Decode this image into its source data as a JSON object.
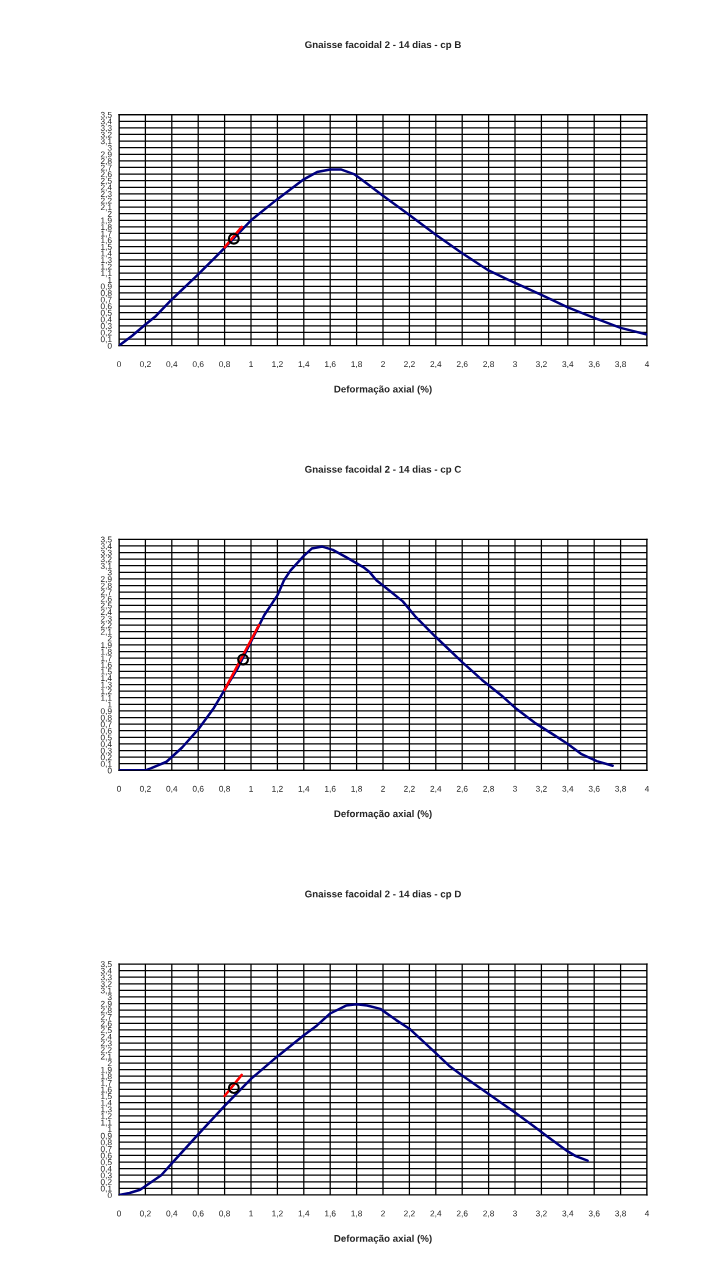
{
  "chart_data": [
    {
      "type": "line",
      "title": "Gnaisse facoidal 2 - 14 dias - cp B",
      "xlabel": "Deformação axial (%)",
      "xlim": [
        0,
        4
      ],
      "xticks": [
        0,
        {
          "value": 0.2,
          "label": "0,2"
        },
        {
          "value": 0.4,
          "label": "0,4"
        },
        {
          "value": 0.6,
          "label": "0,6"
        },
        {
          "value": 0.8,
          "label": "0,8"
        },
        1,
        {
          "value": 1.2,
          "label": "1,2"
        },
        {
          "value": 1.4,
          "label": "1,4"
        },
        {
          "value": 1.6,
          "label": "1,6"
        },
        {
          "value": 1.8,
          "label": "1,8"
        },
        2,
        {
          "value": 2.2,
          "label": "2,2"
        },
        {
          "value": 2.4,
          "label": "2,4"
        },
        {
          "value": 2.6,
          "label": "2,6"
        },
        {
          "value": 2.8,
          "label": "2,8"
        },
        3,
        {
          "value": 3.2,
          "label": "3,2"
        },
        {
          "value": 3.4,
          "label": "3,4"
        },
        {
          "value": 3.6,
          "label": "3,6"
        },
        {
          "value": 3.8,
          "label": "3,8"
        },
        4
      ],
      "ylim": [
        0,
        3.5
      ],
      "yticks": [
        0,
        {
          "value": 0.1,
          "label": "0,1"
        },
        {
          "value": 0.2,
          "label": "0,2"
        },
        {
          "value": 0.3,
          "label": "0,3"
        },
        {
          "value": 0.4,
          "label": "0,4"
        },
        {
          "value": 0.5,
          "label": "0,5"
        },
        {
          "value": 0.6,
          "label": "0,6"
        },
        {
          "value": 0.7,
          "label": "0,7"
        },
        {
          "value": 0.8,
          "label": "0,8"
        },
        {
          "value": 0.9,
          "label": "0,9"
        },
        1,
        {
          "value": 1.1,
          "label": "1,1"
        },
        {
          "value": 1.2,
          "label": "1,2"
        },
        {
          "value": 1.3,
          "label": "1,3"
        },
        {
          "value": 1.4,
          "label": "1,4"
        },
        {
          "value": 1.5,
          "label": "1,5"
        },
        {
          "value": 1.6,
          "label": "1,6"
        },
        {
          "value": 1.7,
          "label": "1,7"
        },
        {
          "value": 1.8,
          "label": "1,8"
        },
        {
          "value": 1.9,
          "label": "1,9"
        },
        2,
        {
          "value": 2.1,
          "label": "2,1"
        },
        {
          "value": 2.2,
          "label": "2,2"
        },
        {
          "value": 2.3,
          "label": "2,3"
        },
        {
          "value": 2.4,
          "label": "2,4"
        },
        {
          "value": 2.5,
          "label": "2,5"
        },
        {
          "value": 2.6,
          "label": "2,6"
        },
        {
          "value": 2.7,
          "label": "2,7"
        },
        {
          "value": 2.8,
          "label": "2,8"
        },
        {
          "value": 2.9,
          "label": "2,9"
        },
        3,
        {
          "value": 3.1,
          "label": "3,1"
        },
        {
          "value": 3.2,
          "label": "3,2"
        },
        {
          "value": 3.3,
          "label": "3,3"
        },
        {
          "value": 3.4,
          "label": "3,4"
        },
        {
          "value": 3.5,
          "label": "3,5"
        }
      ],
      "grid": true,
      "legend": false,
      "series": [
        {
          "color": "#000080",
          "x": [
            0,
            0.1,
            0.2,
            0.28,
            0.4,
            0.6,
            0.8,
            1.0,
            1.2,
            1.4,
            1.5,
            1.6,
            1.68,
            1.78,
            1.85,
            2.0,
            2.2,
            2.4,
            2.6,
            2.8,
            3.0,
            3.2,
            3.4,
            3.6,
            3.8,
            4.0
          ],
          "values": [
            0,
            0.15,
            0.32,
            0.45,
            0.7,
            1.08,
            1.48,
            1.9,
            2.22,
            2.52,
            2.63,
            2.67,
            2.67,
            2.6,
            2.5,
            2.27,
            1.98,
            1.68,
            1.4,
            1.14,
            0.95,
            0.77,
            0.58,
            0.42,
            0.27,
            0.17
          ]
        },
        {
          "color": "#ff0000",
          "x": [
            0.8,
            0.93
          ],
          "values": [
            1.49,
            1.8
          ]
        },
        {
          "type": "scatter",
          "marker": "circle",
          "color": "#000000",
          "x": [
            0.87
          ],
          "values": [
            1.62
          ]
        }
      ]
    },
    {
      "type": "line",
      "title": "Gnaisse facoidal 2 - 14 dias - cp C",
      "xlabel": "Deformação axial (%)",
      "xlim": [
        0,
        4
      ],
      "xticks": [
        0,
        {
          "value": 0.2,
          "label": "0,2"
        },
        {
          "value": 0.4,
          "label": "0,4"
        },
        {
          "value": 0.6,
          "label": "0,6"
        },
        {
          "value": 0.8,
          "label": "0,8"
        },
        1,
        {
          "value": 1.2,
          "label": "1,2"
        },
        {
          "value": 1.4,
          "label": "1,4"
        },
        {
          "value": 1.6,
          "label": "1,6"
        },
        {
          "value": 1.8,
          "label": "1,8"
        },
        2,
        {
          "value": 2.2,
          "label": "2,2"
        },
        {
          "value": 2.4,
          "label": "2,4"
        },
        {
          "value": 2.6,
          "label": "2,6"
        },
        {
          "value": 2.8,
          "label": "2,8"
        },
        3,
        {
          "value": 3.2,
          "label": "3,2"
        },
        {
          "value": 3.4,
          "label": "3,4"
        },
        {
          "value": 3.6,
          "label": "3,6"
        },
        {
          "value": 3.8,
          "label": "3,8"
        },
        4
      ],
      "ylim": [
        0,
        3.5
      ],
      "yticks": [
        0,
        {
          "value": 0.1,
          "label": "0,1"
        },
        {
          "value": 0.2,
          "label": "0,2"
        },
        {
          "value": 0.3,
          "label": "0,3"
        },
        {
          "value": 0.4,
          "label": "0,4"
        },
        {
          "value": 0.5,
          "label": "0,5"
        },
        {
          "value": 0.6,
          "label": "0,6"
        },
        {
          "value": 0.7,
          "label": "0,7"
        },
        {
          "value": 0.8,
          "label": "0,8"
        },
        {
          "value": 0.9,
          "label": "0,9"
        },
        1,
        {
          "value": 1.1,
          "label": "1,1"
        },
        {
          "value": 1.2,
          "label": "1,2"
        },
        {
          "value": 1.3,
          "label": "1,3"
        },
        {
          "value": 1.4,
          "label": "1,4"
        },
        {
          "value": 1.5,
          "label": "1,5"
        },
        {
          "value": 1.6,
          "label": "1,6"
        },
        {
          "value": 1.7,
          "label": "1,7"
        },
        {
          "value": 1.8,
          "label": "1,8"
        },
        {
          "value": 1.9,
          "label": "1,9"
        },
        2,
        {
          "value": 2.1,
          "label": "2,1"
        },
        {
          "value": 2.2,
          "label": "2,2"
        },
        {
          "value": 2.3,
          "label": "2,3"
        },
        {
          "value": 2.4,
          "label": "2,4"
        },
        {
          "value": 2.5,
          "label": "2,5"
        },
        {
          "value": 2.6,
          "label": "2,6"
        },
        {
          "value": 2.7,
          "label": "2,7"
        },
        {
          "value": 2.8,
          "label": "2,8"
        },
        {
          "value": 2.9,
          "label": "2,9"
        },
        3,
        {
          "value": 3.1,
          "label": "3,1"
        },
        {
          "value": 3.2,
          "label": "3,2"
        },
        {
          "value": 3.3,
          "label": "3,3"
        },
        {
          "value": 3.4,
          "label": "3,4"
        },
        {
          "value": 3.5,
          "label": "3,5"
        }
      ],
      "grid": true,
      "legend": false,
      "series": [
        {
          "color": "#000080",
          "x": [
            0,
            0.2,
            0.24,
            0.36,
            0.48,
            0.6,
            0.72,
            0.8,
            0.9,
            1.0,
            1.1,
            1.2,
            1.25,
            1.3,
            1.4,
            1.46,
            1.54,
            1.62,
            1.72,
            1.85,
            1.9,
            1.95,
            2.05,
            2.15,
            2.25,
            2.4,
            2.6,
            2.75,
            2.9,
            3.0,
            3.15,
            3.3,
            3.4,
            3.5,
            3.62,
            3.74
          ],
          "values": [
            0,
            0,
            0.03,
            0.13,
            0.35,
            0.62,
            0.95,
            1.22,
            1.55,
            1.95,
            2.35,
            2.65,
            2.88,
            3.03,
            3.25,
            3.36,
            3.39,
            3.34,
            3.23,
            3.08,
            3.0,
            2.88,
            2.72,
            2.56,
            2.32,
            2.02,
            1.64,
            1.37,
            1.13,
            0.95,
            0.72,
            0.53,
            0.4,
            0.25,
            0.14,
            0.07
          ]
        },
        {
          "color": "#ff0000",
          "x": [
            0.8,
            1.06
          ],
          "values": [
            1.22,
            2.2
          ]
        },
        {
          "type": "scatter",
          "marker": "circle",
          "color": "#000000",
          "x": [
            0.94
          ],
          "values": [
            1.68
          ]
        }
      ]
    },
    {
      "type": "line",
      "title": "Gnaisse facoidal 2 - 14 dias - cp D",
      "xlabel": "Deformação axial (%)",
      "xlim": [
        0,
        4
      ],
      "xticks": [
        0,
        {
          "value": 0.2,
          "label": "0,2"
        },
        {
          "value": 0.4,
          "label": "0,4"
        },
        {
          "value": 0.6,
          "label": "0,6"
        },
        {
          "value": 0.8,
          "label": "0,8"
        },
        1,
        {
          "value": 1.2,
          "label": "1,2"
        },
        {
          "value": 1.4,
          "label": "1,4"
        },
        {
          "value": 1.6,
          "label": "1,6"
        },
        {
          "value": 1.8,
          "label": "1,8"
        },
        2,
        {
          "value": 2.2,
          "label": "2,2"
        },
        {
          "value": 2.4,
          "label": "2,4"
        },
        {
          "value": 2.6,
          "label": "2,6"
        },
        {
          "value": 2.8,
          "label": "2,8"
        },
        3,
        {
          "value": 3.2,
          "label": "3,2"
        },
        {
          "value": 3.4,
          "label": "3,4"
        },
        {
          "value": 3.6,
          "label": "3,6"
        },
        {
          "value": 3.8,
          "label": "3,8"
        },
        4
      ],
      "ylim": [
        0,
        3.5
      ],
      "yticks": [
        0,
        {
          "value": 0.1,
          "label": "0,1"
        },
        {
          "value": 0.2,
          "label": "0,2"
        },
        {
          "value": 0.3,
          "label": "0,3"
        },
        {
          "value": 0.4,
          "label": "0,4"
        },
        {
          "value": 0.5,
          "label": "0,5"
        },
        {
          "value": 0.6,
          "label": "0,6"
        },
        {
          "value": 0.7,
          "label": "0,7"
        },
        {
          "value": 0.8,
          "label": "0,8"
        },
        {
          "value": 0.9,
          "label": "0,9"
        },
        1,
        {
          "value": 1.1,
          "label": "1,1"
        },
        {
          "value": 1.2,
          "label": "1,2"
        },
        {
          "value": 1.3,
          "label": "1,3"
        },
        {
          "value": 1.4,
          "label": "1,4"
        },
        {
          "value": 1.5,
          "label": "1,5"
        },
        {
          "value": 1.6,
          "label": "1,6"
        },
        {
          "value": 1.7,
          "label": "1,7"
        },
        {
          "value": 1.8,
          "label": "1,8"
        },
        {
          "value": 1.9,
          "label": "1,9"
        },
        2,
        {
          "value": 2.1,
          "label": "2,1"
        },
        {
          "value": 2.2,
          "label": "2,2"
        },
        {
          "value": 2.3,
          "label": "2,3"
        },
        {
          "value": 2.4,
          "label": "2,4"
        },
        {
          "value": 2.5,
          "label": "2,5"
        },
        {
          "value": 2.6,
          "label": "2,6"
        },
        {
          "value": 2.7,
          "label": "2,7"
        },
        {
          "value": 2.8,
          "label": "2,8"
        },
        {
          "value": 2.9,
          "label": "2,9"
        },
        3,
        {
          "value": 3.1,
          "label": "3,1"
        },
        {
          "value": 3.2,
          "label": "3,2"
        },
        {
          "value": 3.3,
          "label": "3,3"
        },
        {
          "value": 3.4,
          "label": "3,4"
        },
        {
          "value": 3.5,
          "label": "3,5"
        }
      ],
      "grid": true,
      "legend": false,
      "series": [
        {
          "color": "#000080",
          "x": [
            0,
            0.08,
            0.16,
            0.32,
            0.4,
            0.6,
            0.8,
            1.0,
            1.2,
            1.4,
            1.5,
            1.6,
            1.72,
            1.8,
            1.88,
            1.98,
            2.1,
            2.2,
            2.4,
            2.5,
            2.6,
            2.8,
            3.0,
            3.15,
            3.25,
            3.4,
            3.46,
            3.55
          ],
          "values": [
            0,
            0.03,
            0.08,
            0.3,
            0.48,
            0.92,
            1.35,
            1.76,
            2.1,
            2.42,
            2.57,
            2.75,
            2.87,
            2.89,
            2.87,
            2.82,
            2.65,
            2.52,
            2.15,
            1.96,
            1.81,
            1.53,
            1.25,
            1.03,
            0.88,
            0.66,
            0.59,
            0.52
          ]
        },
        {
          "color": "#ff0000",
          "x": [
            0.8,
            0.93
          ],
          "values": [
            1.5,
            1.82
          ]
        },
        {
          "type": "scatter",
          "marker": "circle",
          "color": "#000000",
          "x": [
            0.87
          ],
          "values": [
            1.62
          ]
        }
      ]
    }
  ]
}
